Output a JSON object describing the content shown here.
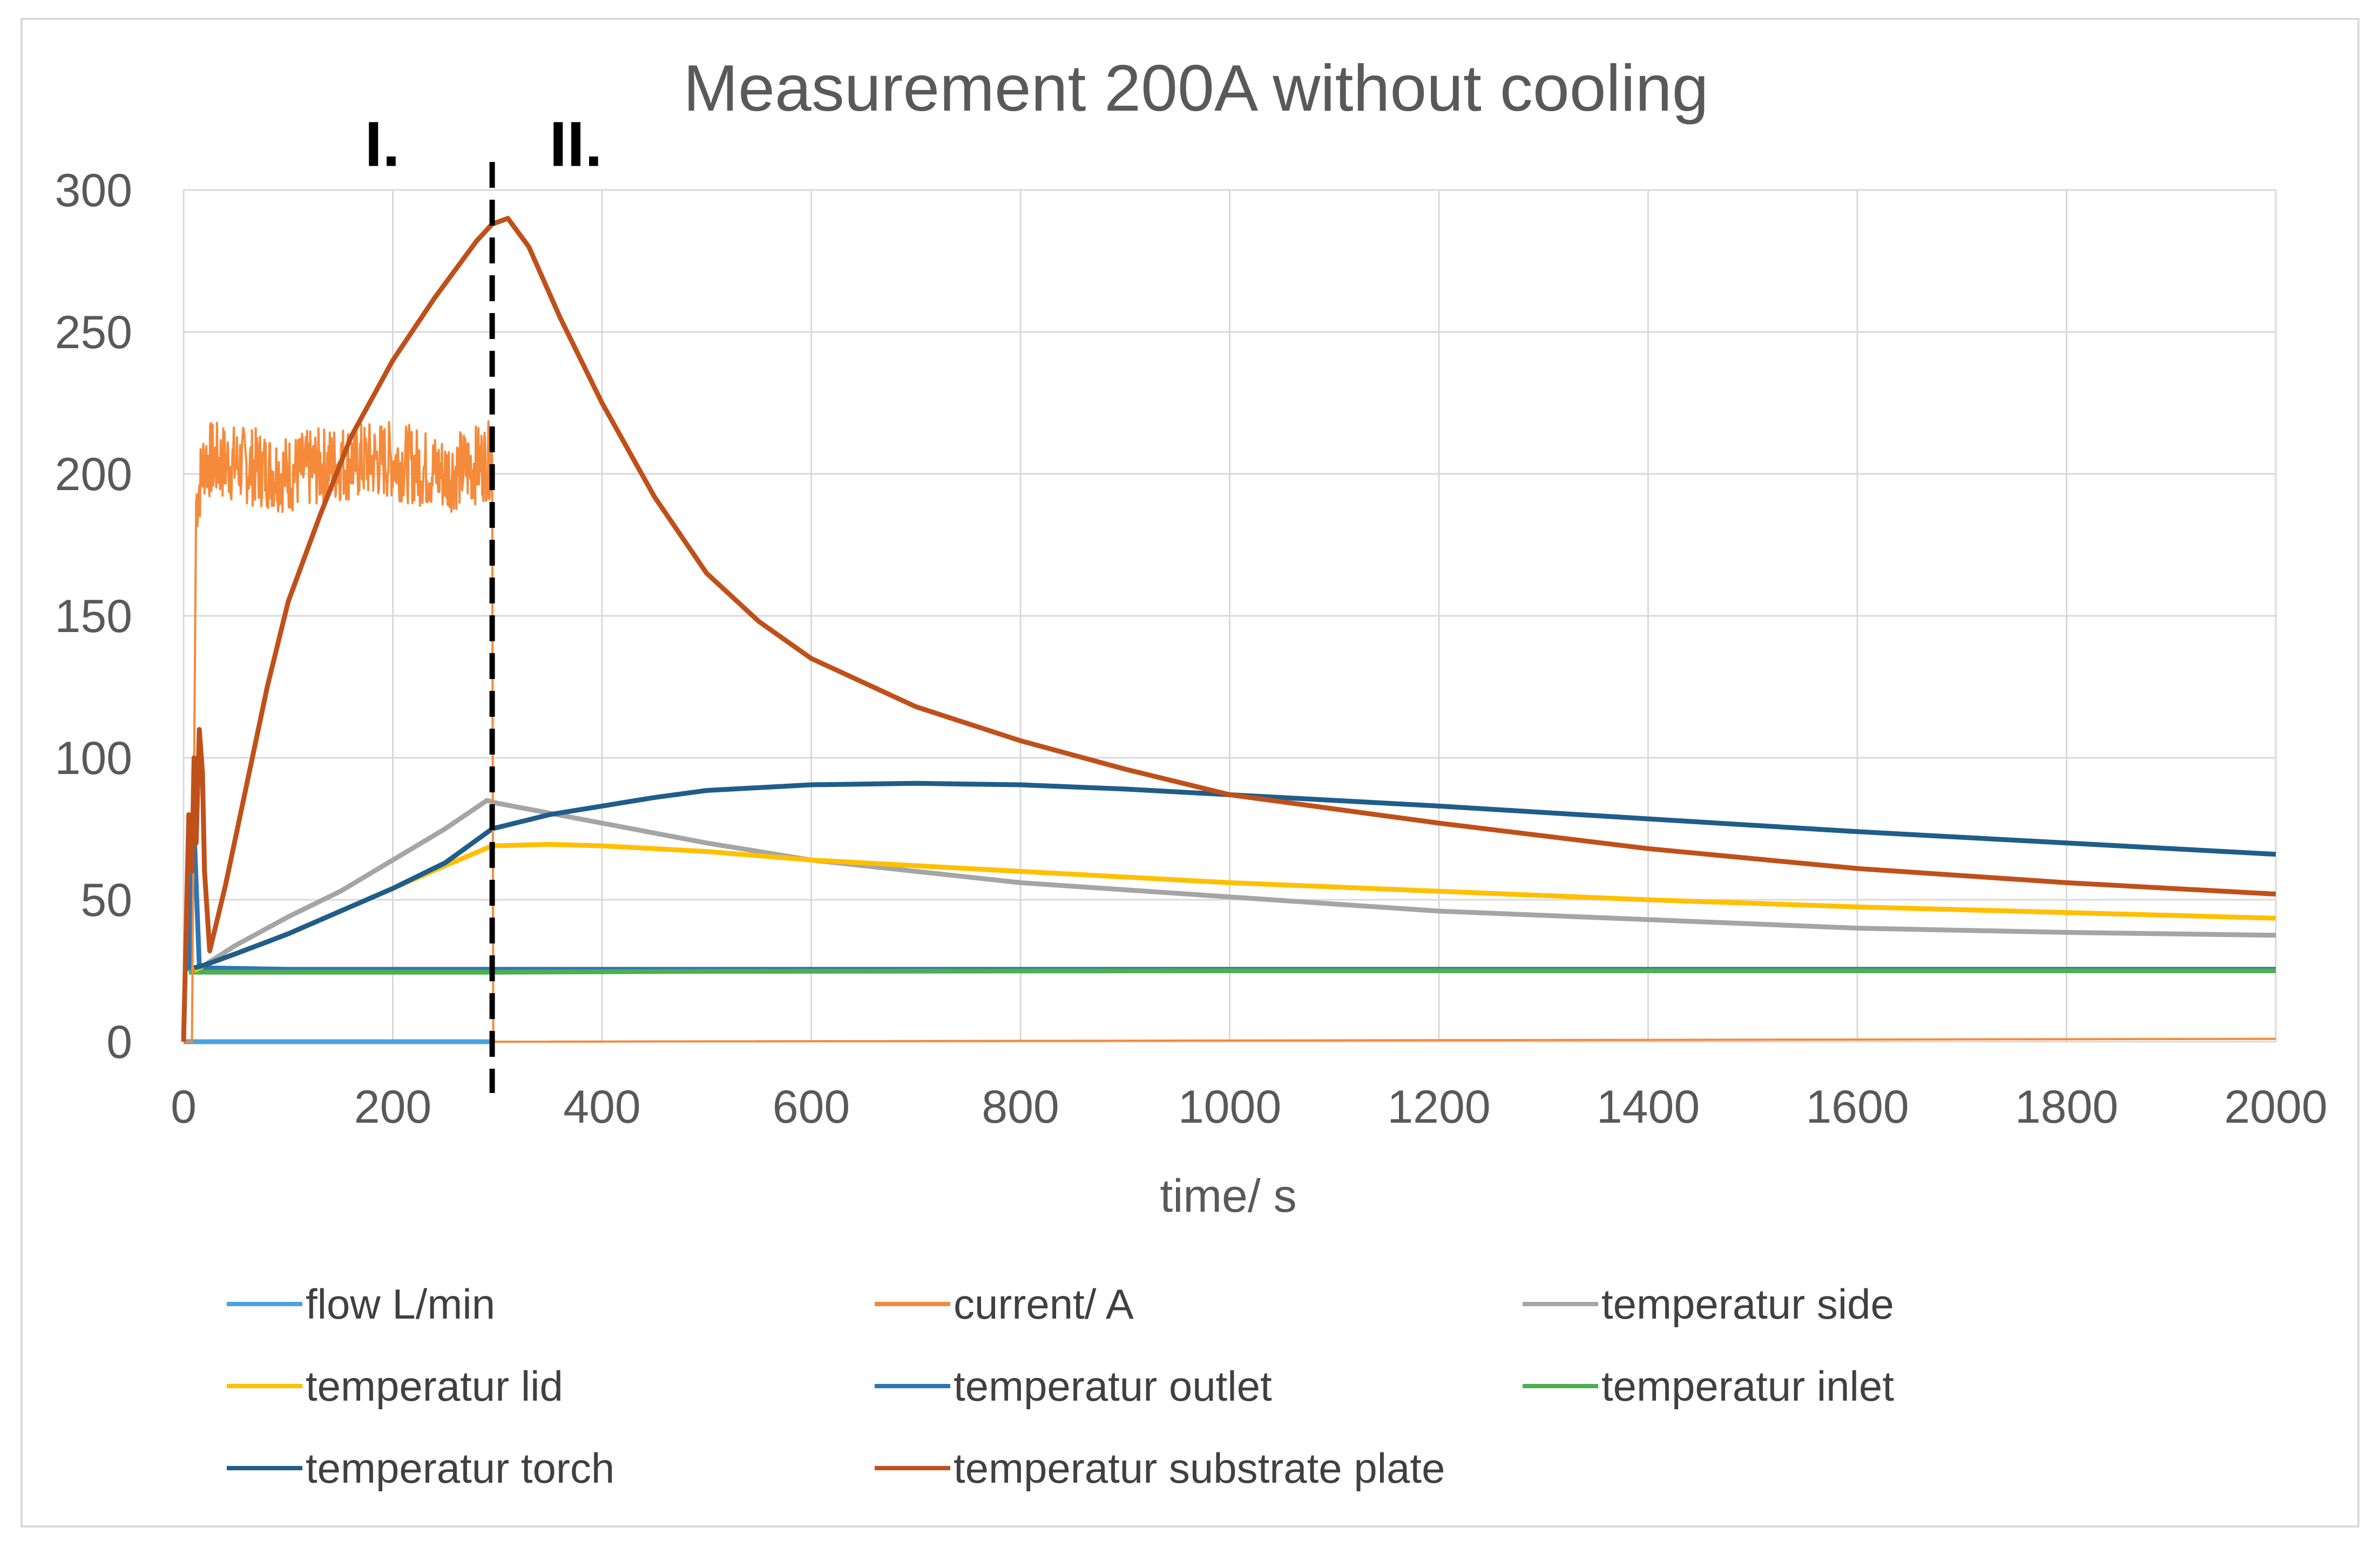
{
  "chart_data": {
    "type": "line",
    "title": "Measurement 200A without cooling",
    "xlabel": "time/ s",
    "ylabel": "",
    "xlim": [
      0,
      2000
    ],
    "ylim": [
      0,
      300
    ],
    "x_ticks": [
      0,
      200,
      400,
      600,
      800,
      1000,
      1200,
      1400,
      1600,
      1800,
      2000
    ],
    "y_ticks": [
      0,
      50,
      100,
      150,
      200,
      250,
      300
    ],
    "grid": true,
    "legend_position": "bottom",
    "annotations": [
      {
        "text": "I.",
        "x": 190,
        "y": 310
      },
      {
        "text": "II.",
        "x": 375,
        "y": 310
      }
    ],
    "vertical_marker": {
      "x": 295,
      "style": "dashed",
      "color": "#000000"
    },
    "series": [
      {
        "name": "flow L/min",
        "color": "#4AA3DF",
        "points": [
          [
            0,
            0
          ],
          [
            15,
            0
          ],
          [
            100,
            0
          ],
          [
            200,
            0
          ],
          [
            295,
            0
          ]
        ]
      },
      {
        "name": "current/ A",
        "color": "#F58A3A",
        "noisy": true,
        "noise_amplitude": 14,
        "points": [
          [
            0,
            0
          ],
          [
            8,
            0
          ],
          [
            12,
            190
          ],
          [
            20,
            205
          ],
          [
            60,
            203
          ],
          [
            100,
            200
          ],
          [
            150,
            204
          ],
          [
            200,
            205
          ],
          [
            250,
            200
          ],
          [
            295,
            205
          ],
          [
            296,
            0
          ],
          [
            2000,
            1
          ]
        ]
      },
      {
        "name": "temperatur side",
        "color": "#A5A5A5",
        "points": [
          [
            10,
            25
          ],
          [
            20,
            27
          ],
          [
            50,
            34
          ],
          [
            100,
            44
          ],
          [
            150,
            53
          ],
          [
            200,
            64
          ],
          [
            250,
            75
          ],
          [
            290,
            85
          ],
          [
            300,
            84
          ],
          [
            400,
            77
          ],
          [
            500,
            70
          ],
          [
            600,
            64
          ],
          [
            700,
            60
          ],
          [
            800,
            56
          ],
          [
            1000,
            51
          ],
          [
            1200,
            46
          ],
          [
            1400,
            43
          ],
          [
            1600,
            40
          ],
          [
            1800,
            38.5
          ],
          [
            2000,
            37.5
          ]
        ]
      },
      {
        "name": "temperatur lid",
        "color": "#FFC000",
        "points": [
          [
            10,
            25
          ],
          [
            20,
            27
          ],
          [
            50,
            31
          ],
          [
            100,
            38
          ],
          [
            150,
            46
          ],
          [
            200,
            54
          ],
          [
            250,
            62
          ],
          [
            295,
            69
          ],
          [
            350,
            69.5
          ],
          [
            400,
            69
          ],
          [
            500,
            67
          ],
          [
            600,
            64
          ],
          [
            700,
            62
          ],
          [
            800,
            60
          ],
          [
            1000,
            56
          ],
          [
            1200,
            53
          ],
          [
            1400,
            50
          ],
          [
            1600,
            47.5
          ],
          [
            1800,
            45.5
          ],
          [
            2000,
            43.5
          ]
        ]
      },
      {
        "name": "temperatur outlet",
        "color": "#2E75B6",
        "points": [
          [
            5,
            25
          ],
          [
            10,
            75
          ],
          [
            15,
            27
          ],
          [
            20,
            26
          ],
          [
            100,
            25.5
          ],
          [
            200,
            25.5
          ],
          [
            295,
            25.5
          ],
          [
            500,
            25.5
          ],
          [
            1000,
            25.5
          ],
          [
            1500,
            25.5
          ],
          [
            2000,
            25.5
          ]
        ]
      },
      {
        "name": "temperatur inlet",
        "color": "#4CAF50",
        "points": [
          [
            5,
            24.5
          ],
          [
            100,
            24.5
          ],
          [
            300,
            24.5
          ],
          [
            500,
            24.8
          ],
          [
            1000,
            25
          ],
          [
            1500,
            25
          ],
          [
            2000,
            25
          ]
        ]
      },
      {
        "name": "temperatur torch",
        "color": "#1F5D8A",
        "points": [
          [
            10,
            26
          ],
          [
            20,
            27
          ],
          [
            50,
            31
          ],
          [
            100,
            38
          ],
          [
            150,
            46
          ],
          [
            200,
            54
          ],
          [
            250,
            63
          ],
          [
            295,
            75
          ],
          [
            350,
            80
          ],
          [
            400,
            83
          ],
          [
            450,
            86
          ],
          [
            500,
            88.5
          ],
          [
            600,
            90.5
          ],
          [
            700,
            91
          ],
          [
            800,
            90.5
          ],
          [
            900,
            89
          ],
          [
            1000,
            87
          ],
          [
            1200,
            83
          ],
          [
            1400,
            78.5
          ],
          [
            1600,
            74
          ],
          [
            1800,
            70
          ],
          [
            2000,
            66
          ]
        ]
      },
      {
        "name": "temperatur substrate plate",
        "color": "#C0501A",
        "points": [
          [
            0,
            0
          ],
          [
            5,
            80
          ],
          [
            8,
            60
          ],
          [
            10,
            100
          ],
          [
            12,
            70
          ],
          [
            15,
            110
          ],
          [
            18,
            95
          ],
          [
            20,
            60
          ],
          [
            25,
            32
          ],
          [
            40,
            55
          ],
          [
            60,
            90
          ],
          [
            80,
            125
          ],
          [
            100,
            155
          ],
          [
            130,
            185
          ],
          [
            160,
            213
          ],
          [
            200,
            240
          ],
          [
            240,
            262
          ],
          [
            280,
            282
          ],
          [
            295,
            288
          ],
          [
            310,
            290
          ],
          [
            330,
            280
          ],
          [
            360,
            255
          ],
          [
            400,
            225
          ],
          [
            450,
            192
          ],
          [
            500,
            165
          ],
          [
            550,
            148
          ],
          [
            600,
            135
          ],
          [
            700,
            118
          ],
          [
            800,
            106
          ],
          [
            900,
            96
          ],
          [
            1000,
            87
          ],
          [
            1200,
            77
          ],
          [
            1400,
            68
          ],
          [
            1600,
            61
          ],
          [
            1800,
            56
          ],
          [
            2000,
            52
          ]
        ]
      }
    ]
  }
}
